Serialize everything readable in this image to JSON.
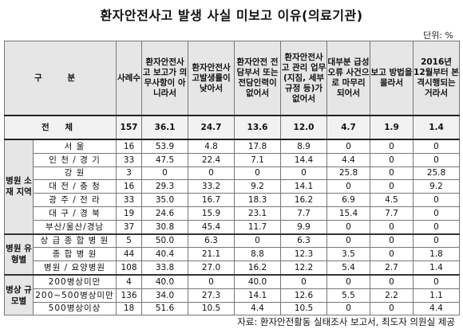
{
  "title": "환자안전사고 발생 사실 미보고 이유(의료기관)",
  "unit": "단위: %",
  "table": {
    "header": {
      "gubun": "구  분",
      "cols": [
        "사례수",
        "환자안전사고 보고가 의무사항이 아니라서",
        "환자안전사고발생률이 낮아서",
        "환자안전 전담부서 또는 전담인력이 없어서",
        "환자안전사고 관리 업무(지침, 세부규정 등)가 없어서",
        "대부분 급성오류 사건으로 마무리 되어서",
        "보고 방법을 몰라서",
        "2016년 12월부터 본격시행되는 거라서"
      ]
    },
    "total": {
      "label": "전   체",
      "values": [
        "157",
        "36.1",
        "24.7",
        "13.6",
        "12.0",
        "4.7",
        "1.9",
        "1.4"
      ]
    },
    "groups": [
      {
        "label": "병원 소재 지역",
        "rows": [
          {
            "label": "서         울",
            "values": [
              "16",
              "53.9",
              "4.8",
              "17.8",
              "8.9",
              "0",
              "0",
              "0"
            ]
          },
          {
            "label": "인 천 / 경 기",
            "values": [
              "33",
              "47.5",
              "22.4",
              "7.1",
              "14.4",
              "4.4",
              "0",
              "0"
            ]
          },
          {
            "label": "강         원",
            "values": [
              "3",
              "0",
              "0",
              "0",
              "0",
              "25.8",
              "0",
              "25.8"
            ]
          },
          {
            "label": "대 전 / 충 청",
            "values": [
              "16",
              "29.3",
              "33.2",
              "9.2",
              "14.1",
              "0",
              "0",
              "9.2"
            ]
          },
          {
            "label": "광 주 / 전 라",
            "values": [
              "33",
              "35.0",
              "16.7",
              "18.3",
              "16.2",
              "6.9",
              "4.5",
              "0"
            ]
          },
          {
            "label": "대 구 / 경 북",
            "values": [
              "19",
              "24.6",
              "15.9",
              "23.1",
              "7.7",
              "15.4",
              "7.7",
              "0"
            ]
          },
          {
            "label": "부산/울산/경남",
            "values": [
              "37",
              "30.8",
              "45.4",
              "11.7",
              "9.9",
              "0",
              "0",
              "0"
            ]
          }
        ]
      },
      {
        "label": "병원 유형별",
        "rows": [
          {
            "label": "상 급 종 합 병 원",
            "values": [
              "5",
              "50.0",
              "6.3",
              "0",
              "6.3",
              "0",
              "0",
              "0"
            ]
          },
          {
            "label": "종   합   병   원",
            "values": [
              "44",
              "40.4",
              "21.1",
              "8.8",
              "12.3",
              "3.5",
              "0",
              "1.8"
            ]
          },
          {
            "label": "병원 / 요양병원",
            "values": [
              "108",
              "33.8",
              "27.0",
              "16.2",
              "12.2",
              "5.4",
              "2.7",
              "1.4"
            ]
          }
        ]
      },
      {
        "label": "병상 규모별",
        "rows": [
          {
            "label": "200병상미만",
            "values": [
              "4",
              "40.0",
              "0",
              "40.0",
              "0",
              "0",
              "0",
              "0"
            ]
          },
          {
            "label": "200~500병상미만",
            "values": [
              "136",
              "34.0",
              "27.3",
              "14.1",
              "12.6",
              "5.5",
              "2.2",
              "1.1"
            ]
          },
          {
            "label": "500병상이상",
            "values": [
              "18",
              "51.6",
              "10.5",
              "4.4",
              "10.5",
              "0",
              "0",
              "4.4"
            ]
          }
        ]
      }
    ]
  },
  "source": "자료: 환자안전활동 실태조사 보고서, 최도자 의원실 제공"
}
